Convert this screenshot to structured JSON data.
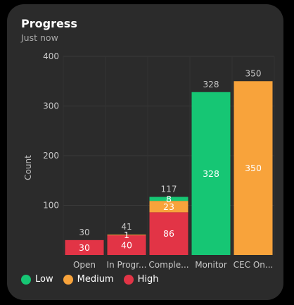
{
  "card": {
    "title": "Progress",
    "subtitle": "Just now"
  },
  "chart_data": {
    "type": "bar",
    "stacked": true,
    "ylabel": "Count",
    "xlabel": "",
    "ylim": [
      0,
      400
    ],
    "yticks": [
      100,
      200,
      300,
      400
    ],
    "grid": true,
    "legend_position": "bottom",
    "categories": [
      "Open",
      "In Progr...",
      "Comple...",
      "Monitor",
      "CEC On..."
    ],
    "series": [
      {
        "name": "High",
        "color": "#e23446",
        "values": [
          30,
          40,
          86,
          0,
          0
        ]
      },
      {
        "name": "Medium",
        "color": "#f8a33b",
        "values": [
          0,
          1,
          23,
          0,
          350
        ]
      },
      {
        "name": "Low",
        "color": "#16c674",
        "values": [
          0,
          0,
          8,
          328,
          0
        ]
      }
    ],
    "totals": [
      30,
      41,
      117,
      328,
      350
    ],
    "segment_labels": [
      {
        "category": 0,
        "series": "High",
        "text": "30"
      },
      {
        "category": 1,
        "series": "High",
        "text": "40"
      },
      {
        "category": 1,
        "series": "Medium",
        "text": "1"
      },
      {
        "category": 2,
        "series": "High",
        "text": "86"
      },
      {
        "category": 2,
        "series": "Medium",
        "text": "23"
      },
      {
        "category": 2,
        "series": "Low",
        "text": "8"
      },
      {
        "category": 3,
        "series": "Low",
        "text": "328"
      },
      {
        "category": 4,
        "series": "Medium",
        "text": "350"
      }
    ]
  },
  "legend": [
    {
      "label": "Low",
      "color": "#16c674"
    },
    {
      "label": "Medium",
      "color": "#f8a33b"
    },
    {
      "label": "High",
      "color": "#e23446"
    }
  ]
}
